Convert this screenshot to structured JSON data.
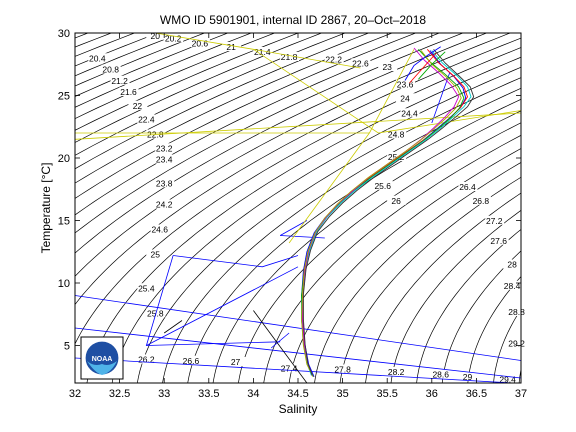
{
  "chart_data": {
    "type": "line",
    "title": "WMO ID 5901901, internal ID 2867, 20–Oct–2018",
    "xlabel": "Salinity",
    "ylabel": "Temperature [°C]",
    "xlim": [
      32,
      37
    ],
    "ylim": [
      2,
      30
    ],
    "xticks": [
      "32",
      "32.5",
      "33",
      "33.5",
      "34",
      "34.5",
      "35",
      "35.5",
      "36",
      "36.5",
      "37"
    ],
    "yticks": [
      "5",
      "10",
      "15",
      "20",
      "25",
      "30"
    ],
    "grid": false,
    "isopycnal_labels": [
      {
        "sigma": "20",
        "s": 32.9,
        "t": 29.7
      },
      {
        "sigma": "20.2",
        "s": 33.1,
        "t": 29.5
      },
      {
        "sigma": "20.4",
        "s": 32.25,
        "t": 27.9
      },
      {
        "sigma": "20.6",
        "s": 33.4,
        "t": 29.1
      },
      {
        "sigma": "20.8",
        "s": 32.4,
        "t": 27.0
      },
      {
        "sigma": "21",
        "s": 33.75,
        "t": 28.8
      },
      {
        "sigma": "21.2",
        "s": 32.5,
        "t": 26.1
      },
      {
        "sigma": "21.4",
        "s": 34.1,
        "t": 28.4
      },
      {
        "sigma": "21.6",
        "s": 32.6,
        "t": 25.2
      },
      {
        "sigma": "21.8",
        "s": 34.4,
        "t": 28.0
      },
      {
        "sigma": "22",
        "s": 32.7,
        "t": 24.1
      },
      {
        "sigma": "22.2",
        "s": 34.9,
        "t": 27.8
      },
      {
        "sigma": "22.4",
        "s": 32.8,
        "t": 23.0
      },
      {
        "sigma": "22.6",
        "s": 35.2,
        "t": 27.5
      },
      {
        "sigma": "22.8",
        "s": 32.9,
        "t": 21.8
      },
      {
        "sigma": "23",
        "s": 35.5,
        "t": 27.2
      },
      {
        "sigma": "23.2",
        "s": 33.0,
        "t": 20.7
      },
      {
        "sigma": "23.4",
        "s": 33.0,
        "t": 19.8
      },
      {
        "sigma": "23.6",
        "s": 35.7,
        "t": 25.8
      },
      {
        "sigma": "23.8",
        "s": 33.0,
        "t": 17.9
      },
      {
        "sigma": "24",
        "s": 35.7,
        "t": 24.7
      },
      {
        "sigma": "24.2",
        "s": 33.0,
        "t": 16.2
      },
      {
        "sigma": "24.4",
        "s": 35.75,
        "t": 23.5
      },
      {
        "sigma": "24.6",
        "s": 32.95,
        "t": 14.2
      },
      {
        "sigma": "24.8",
        "s": 35.6,
        "t": 21.8
      },
      {
        "sigma": "25",
        "s": 32.9,
        "t": 12.2
      },
      {
        "sigma": "25.2",
        "s": 35.6,
        "t": 20.0
      },
      {
        "sigma": "25.4",
        "s": 32.8,
        "t": 9.5
      },
      {
        "sigma": "25.6",
        "s": 35.45,
        "t": 17.7
      },
      {
        "sigma": "25.8",
        "s": 32.9,
        "t": 7.5
      },
      {
        "sigma": "26",
        "s": 35.6,
        "t": 16.5
      },
      {
        "sigma": "26.2",
        "s": 32.8,
        "t": 3.8
      },
      {
        "sigma": "26.4",
        "s": 36.4,
        "t": 17.6
      },
      {
        "sigma": "26.6",
        "s": 33.3,
        "t": 3.7
      },
      {
        "sigma": "26.8",
        "s": 36.55,
        "t": 16.5
      },
      {
        "sigma": "27",
        "s": 33.8,
        "t": 3.6
      },
      {
        "sigma": "27.2",
        "s": 36.7,
        "t": 14.9
      },
      {
        "sigma": "27.4",
        "s": 34.4,
        "t": 3.1
      },
      {
        "sigma": "27.6",
        "s": 36.75,
        "t": 13.3
      },
      {
        "sigma": "27.8",
        "s": 35.0,
        "t": 3.0
      },
      {
        "sigma": "28",
        "s": 36.9,
        "t": 11.4
      },
      {
        "sigma": "28.2",
        "s": 35.6,
        "t": 2.8
      },
      {
        "sigma": "28.4",
        "s": 36.9,
        "t": 9.7
      },
      {
        "sigma": "28.6",
        "s": 36.1,
        "t": 2.6
      },
      {
        "sigma": "28.8",
        "s": 36.95,
        "t": 7.6
      },
      {
        "sigma": "29",
        "s": 36.4,
        "t": 2.4
      },
      {
        "sigma": "29.2",
        "s": 36.95,
        "t": 5.1
      },
      {
        "sigma": "29.4",
        "s": 36.85,
        "t": 2.2
      }
    ],
    "series": [
      {
        "color": "#0000ff",
        "s": [
          34.68,
          34.62,
          34.58,
          34.55,
          34.54,
          34.56,
          34.6,
          34.68,
          34.8,
          34.95,
          35.1,
          35.3,
          35.5,
          35.7,
          35.9,
          36.05,
          36.2,
          36.32,
          36.38,
          36.35,
          36.25,
          36.1,
          35.98
        ],
        "t": [
          2.5,
          3.5,
          5.0,
          7.0,
          9.0,
          11.0,
          12.5,
          14.0,
          15.2,
          16.3,
          17.3,
          18.4,
          19.4,
          20.4,
          21.4,
          22.3,
          23.2,
          24.0,
          24.8,
          25.6,
          26.5,
          27.5,
          28.6
        ]
      },
      {
        "color": "#ff0000",
        "s": [
          34.66,
          34.6,
          34.57,
          34.55,
          34.55,
          34.57,
          34.62,
          34.7,
          34.82,
          34.97,
          35.12,
          35.32,
          35.52,
          35.72,
          35.92,
          36.08,
          36.22,
          36.33,
          36.4,
          36.36,
          36.24,
          36.08,
          35.95
        ],
        "t": [
          2.6,
          3.6,
          5.1,
          7.1,
          9.1,
          11.1,
          12.6,
          14.1,
          15.3,
          16.4,
          17.4,
          18.5,
          19.5,
          20.5,
          21.5,
          22.4,
          23.3,
          24.1,
          24.9,
          25.7,
          26.6,
          27.6,
          28.7
        ]
      },
      {
        "color": "#00aa00",
        "s": [
          34.67,
          34.61,
          34.57,
          34.54,
          34.54,
          34.57,
          34.61,
          34.69,
          34.81,
          34.96,
          35.11,
          35.31,
          35.51,
          35.71,
          35.91,
          36.06,
          36.21,
          36.31,
          36.36,
          36.3,
          36.15,
          35.98,
          35.85
        ],
        "t": [
          2.5,
          3.5,
          5.0,
          7.0,
          9.0,
          11.0,
          12.5,
          14.0,
          15.2,
          16.3,
          17.3,
          18.4,
          19.4,
          20.4,
          21.4,
          22.3,
          23.2,
          24.0,
          24.8,
          25.7,
          26.7,
          27.7,
          28.7
        ]
      },
      {
        "color": "#00cccc",
        "s": [
          34.65,
          34.6,
          34.56,
          34.54,
          34.55,
          34.58,
          34.63,
          34.71,
          34.83,
          34.98,
          35.14,
          35.34,
          35.54,
          35.74,
          35.94,
          36.1,
          36.24,
          36.36,
          36.44,
          36.4,
          36.28,
          36.12,
          36.0
        ],
        "t": [
          2.6,
          3.6,
          5.1,
          7.1,
          9.1,
          11.1,
          12.6,
          14.1,
          15.3,
          16.4,
          17.4,
          18.5,
          19.5,
          20.5,
          21.5,
          22.4,
          23.3,
          24.1,
          24.9,
          25.7,
          26.6,
          27.6,
          28.6
        ]
      },
      {
        "color": "#cc00cc",
        "s": [
          34.66,
          34.61,
          34.57,
          34.55,
          34.55,
          34.58,
          34.62,
          34.7,
          34.82,
          34.96,
          35.12,
          35.3,
          35.5,
          35.7,
          35.88,
          36.02,
          36.15,
          36.25,
          36.3,
          36.22,
          36.08,
          35.92,
          35.8
        ],
        "t": [
          2.6,
          3.6,
          5.1,
          7.1,
          9.1,
          11.1,
          12.6,
          14.1,
          15.3,
          16.4,
          17.4,
          18.5,
          19.5,
          20.5,
          21.5,
          22.4,
          23.3,
          24.1,
          24.9,
          25.8,
          26.8,
          27.8,
          28.8
        ]
      },
      {
        "color": "#aaaa00",
        "s": [
          34.67,
          34.6,
          34.56,
          34.54,
          34.55,
          34.57,
          34.61,
          34.69,
          34.8,
          34.94,
          35.09,
          35.28,
          35.48,
          35.68,
          35.87,
          36.02,
          36.16,
          36.27,
          36.33,
          36.28,
          36.16,
          36.0,
          35.88
        ],
        "t": [
          2.5,
          3.5,
          5.0,
          7.0,
          9.0,
          11.0,
          12.5,
          14.0,
          15.2,
          16.3,
          17.3,
          18.4,
          19.4,
          20.4,
          21.4,
          22.3,
          23.2,
          24.0,
          24.8,
          25.6,
          26.5,
          27.5,
          28.6
        ]
      },
      {
        "color": "#333333",
        "s": [
          34.66,
          34.61,
          34.58,
          34.56,
          34.56,
          34.59,
          34.64,
          34.72,
          34.85,
          35.0,
          35.16,
          35.36,
          35.56,
          35.76,
          35.96,
          36.12,
          36.27,
          36.4,
          36.47,
          36.43,
          36.3,
          36.15,
          36.02
        ],
        "t": [
          2.6,
          3.6,
          5.1,
          7.1,
          9.1,
          11.1,
          12.6,
          14.1,
          15.3,
          16.4,
          17.4,
          18.5,
          19.5,
          20.5,
          21.5,
          22.4,
          23.3,
          24.1,
          24.9,
          25.7,
          26.6,
          27.6,
          28.7
        ]
      },
      {
        "color": "#0000ff",
        "s": [
          35.7,
          35.8,
          35.95,
          36.1
        ],
        "t": [
          26.2,
          27.4,
          28.2,
          28.9
        ]
      },
      {
        "color": "#ff0000",
        "s": [
          35.75,
          35.9,
          36.05
        ],
        "t": [
          26.0,
          27.2,
          28.4
        ]
      },
      {
        "color": "#00aa00",
        "s": [
          35.85,
          36.0,
          36.15
        ],
        "t": [
          26.3,
          27.5,
          28.5
        ]
      }
    ],
    "reference_lines": [
      {
        "color": "#0000ff",
        "s": [
          32.0,
          37.0
        ],
        "t": [
          9.0,
          3.8
        ]
      },
      {
        "color": "#0000ff",
        "s": [
          32.0,
          37.0
        ],
        "t": [
          6.4,
          2.4
        ]
      },
      {
        "color": "#0000ff",
        "s": [
          32.0,
          36.9
        ],
        "t": [
          4.0,
          2.0
        ]
      },
      {
        "color": "#0000ff",
        "s": [
          33.1,
          34.1,
          34.5
        ],
        "t": [
          12.2,
          11.3,
          12.2
        ]
      },
      {
        "color": "#0000ff",
        "s": [
          33.1,
          32.8,
          34.3
        ],
        "t": [
          12.2,
          5.0,
          5.3
        ]
      },
      {
        "color": "#0000ff",
        "s": [
          32.8,
          34.5
        ],
        "t": [
          5.0,
          11.3
        ]
      },
      {
        "color": "#0000ff",
        "s": [
          34.2,
          34.4
        ],
        "t": [
          4.8,
          6.0
        ]
      },
      {
        "color": "#0000ff",
        "s": [
          34.3,
          34.6
        ],
        "t": [
          13.8,
          15.0
        ]
      },
      {
        "color": "#0000ff",
        "s": [
          34.3,
          34.8
        ],
        "t": [
          13.8,
          13.6
        ]
      },
      {
        "color": "#0000ff",
        "s": [
          36.0,
          36.2
        ],
        "t": [
          22.8,
          26.8
        ]
      },
      {
        "color": "#000000",
        "s": [
          34.0,
          34.6
        ],
        "t": [
          7.8,
          2.0
        ]
      },
      {
        "color": "#000000",
        "s": [
          33.0,
          33.2
        ],
        "t": [
          6.0,
          7.0
        ]
      },
      {
        "color": "#cccc00",
        "s": [
          32.9,
          34.0
        ],
        "t": [
          30.0,
          28.7
        ]
      },
      {
        "color": "#cccc00",
        "s": [
          34.0,
          35.4,
          37.0
        ],
        "t": [
          28.7,
          22.0,
          23.8
        ]
      },
      {
        "color": "#cccc00",
        "s": [
          34.0,
          35.2
        ],
        "t": [
          28.7,
          27.2
        ]
      },
      {
        "color": "#cccc00",
        "s": [
          32.0,
          37.0
        ],
        "t": [
          21.5,
          23.6
        ]
      },
      {
        "color": "#cccc00",
        "s": [
          32.0,
          35.3
        ],
        "t": [
          22.0,
          22.0
        ]
      },
      {
        "color": "#cccc00",
        "s": [
          35.3,
          34.4
        ],
        "t": [
          22.0,
          13.2
        ]
      },
      {
        "color": "#cccc00",
        "s": [
          35.8,
          35.3
        ],
        "t": [
          28.7,
          22.0
        ]
      }
    ]
  },
  "logo": {
    "text": "NOAA"
  }
}
